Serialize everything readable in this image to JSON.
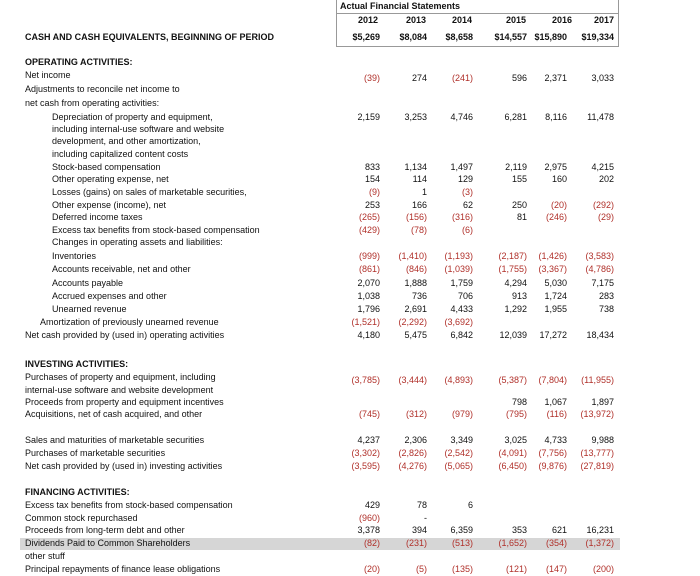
{
  "header": {
    "title": "Actual Financial Statements",
    "years": [
      "2012",
      "2013",
      "2014",
      "2015",
      "2016",
      "2017"
    ]
  },
  "rows": [
    {
      "label": "CASH AND CASH EQUIVALENTS, BEGINNING OF PERIOD",
      "values": [
        "$5,269",
        "$8,084",
        "$8,658",
        "$14,557",
        "$15,890",
        "$19,334"
      ]
    },
    {
      "label": "OPERATING ACTIVITIES:"
    },
    {
      "label": "Net income",
      "values": [
        "(39)",
        "274",
        "(241)",
        "596",
        "2,371",
        "3,033"
      ]
    },
    {
      "label": "Adjustments to reconcile net income to"
    },
    {
      "label": "net cash from operating activities:"
    },
    {
      "label": "Depreciation of property and equipment,",
      "values": [
        "2,159",
        "3,253",
        "4,746",
        "6,281",
        "8,116",
        "11,478"
      ]
    },
    {
      "label": "including internal-use software and website"
    },
    {
      "label": "development, and other amortization,"
    },
    {
      "label": "including capitalized content costs"
    },
    {
      "label": "Stock-based compensation",
      "values": [
        "833",
        "1,134",
        "1,497",
        "2,119",
        "2,975",
        "4,215"
      ]
    },
    {
      "label": "Other operating expense, net",
      "values": [
        "154",
        "114",
        "129",
        "155",
        "160",
        "202"
      ]
    },
    {
      "label": "Losses (gains) on sales of marketable securities,",
      "values": [
        "(9)",
        "1",
        "(3)",
        null,
        null,
        null
      ]
    },
    {
      "label": "Other expense (income), net",
      "values": [
        "253",
        "166",
        "62",
        "250",
        "(20)",
        "(292)"
      ]
    },
    {
      "label": "Deferred income taxes",
      "values": [
        "(265)",
        "(156)",
        "(316)",
        "81",
        "(246)",
        "(29)"
      ]
    },
    {
      "label": "Excess tax benefits from stock-based compensation",
      "values": [
        "(429)",
        "(78)",
        "(6)",
        null,
        null,
        null
      ]
    },
    {
      "label": "Changes in operating assets and liabilities:"
    },
    {
      "label": "Inventories",
      "values": [
        "(999)",
        "(1,410)",
        "(1,193)",
        "(2,187)",
        "(1,426)",
        "(3,583)"
      ]
    },
    {
      "label": "Accounts receivable, net and other",
      "values": [
        "(861)",
        "(846)",
        "(1,039)",
        "(1,755)",
        "(3,367)",
        "(4,786)"
      ]
    },
    {
      "label": "Accounts payable",
      "values": [
        "2,070",
        "1,888",
        "1,759",
        "4,294",
        "5,030",
        "7,175"
      ]
    },
    {
      "label": "Accrued expenses and other",
      "values": [
        "1,038",
        "736",
        "706",
        "913",
        "1,724",
        "283"
      ]
    },
    {
      "label": "Unearned revenue",
      "values": [
        "1,796",
        "2,691",
        "4,433",
        "1,292",
        "1,955",
        "738"
      ]
    },
    {
      "label": "Amortization of previously unearned revenue",
      "values": [
        "(1,521)",
        "(2,292)",
        "(3,692)",
        null,
        null,
        null
      ]
    },
    {
      "label": "Net cash provided by (used in) operating activities",
      "values": [
        "4,180",
        "5,475",
        "6,842",
        "12,039",
        "17,272",
        "18,434"
      ]
    },
    {
      "label": "INVESTING ACTIVITIES:"
    },
    {
      "label": "Purchases of property and equipment, including",
      "values": [
        "(3,785)",
        "(3,444)",
        "(4,893)",
        "(5,387)",
        "(7,804)",
        "(11,955)"
      ]
    },
    {
      "label": "internal-use software and website development"
    },
    {
      "label": "Proceeds from property and equipment incentives",
      "values": [
        null,
        null,
        null,
        "798",
        "1,067",
        "1,897"
      ]
    },
    {
      "label": "Acquisitions, net of cash acquired, and other",
      "values": [
        "(745)",
        "(312)",
        "(979)",
        "(795)",
        "(116)",
        "(13,972)"
      ]
    },
    {
      "label": "Sales and maturities of marketable securities",
      "values": [
        "4,237",
        "2,306",
        "3,349",
        "3,025",
        "4,733",
        "9,988"
      ]
    },
    {
      "label": "Purchases of marketable securities",
      "values": [
        "(3,302)",
        "(2,826)",
        "(2,542)",
        "(4,091)",
        "(7,756)",
        "(13,777)"
      ]
    },
    {
      "label": "Net cash provided by (used in) investing activities",
      "values": [
        "(3,595)",
        "(4,276)",
        "(5,065)",
        "(6,450)",
        "(9,876)",
        "(27,819)"
      ]
    },
    {
      "label": "FINANCING ACTIVITIES:"
    },
    {
      "label": "Excess tax benefits from stock-based compensation",
      "values": [
        "429",
        "78",
        "6",
        null,
        null,
        null
      ]
    },
    {
      "label": "Common stock repurchased",
      "values": [
        "(960)",
        "-",
        null,
        null,
        null,
        null
      ]
    },
    {
      "label": "Proceeds from long-term debt and other",
      "values": [
        "3,378",
        "394",
        "6,359",
        "353",
        "621",
        "16,231"
      ]
    },
    {
      "label": "Dividends Paid to Common Shareholders",
      "values": [
        "(82)",
        "(231)",
        "(513)",
        "(1,652)",
        "(354)",
        "(1,372)"
      ]
    },
    {
      "label": "other stuff"
    },
    {
      "label": "Principal repayments of finance lease obligations",
      "values": [
        "(20)",
        "(5)",
        "(135)",
        "(121)",
        "(147)",
        "(200)"
      ]
    }
  ]
}
